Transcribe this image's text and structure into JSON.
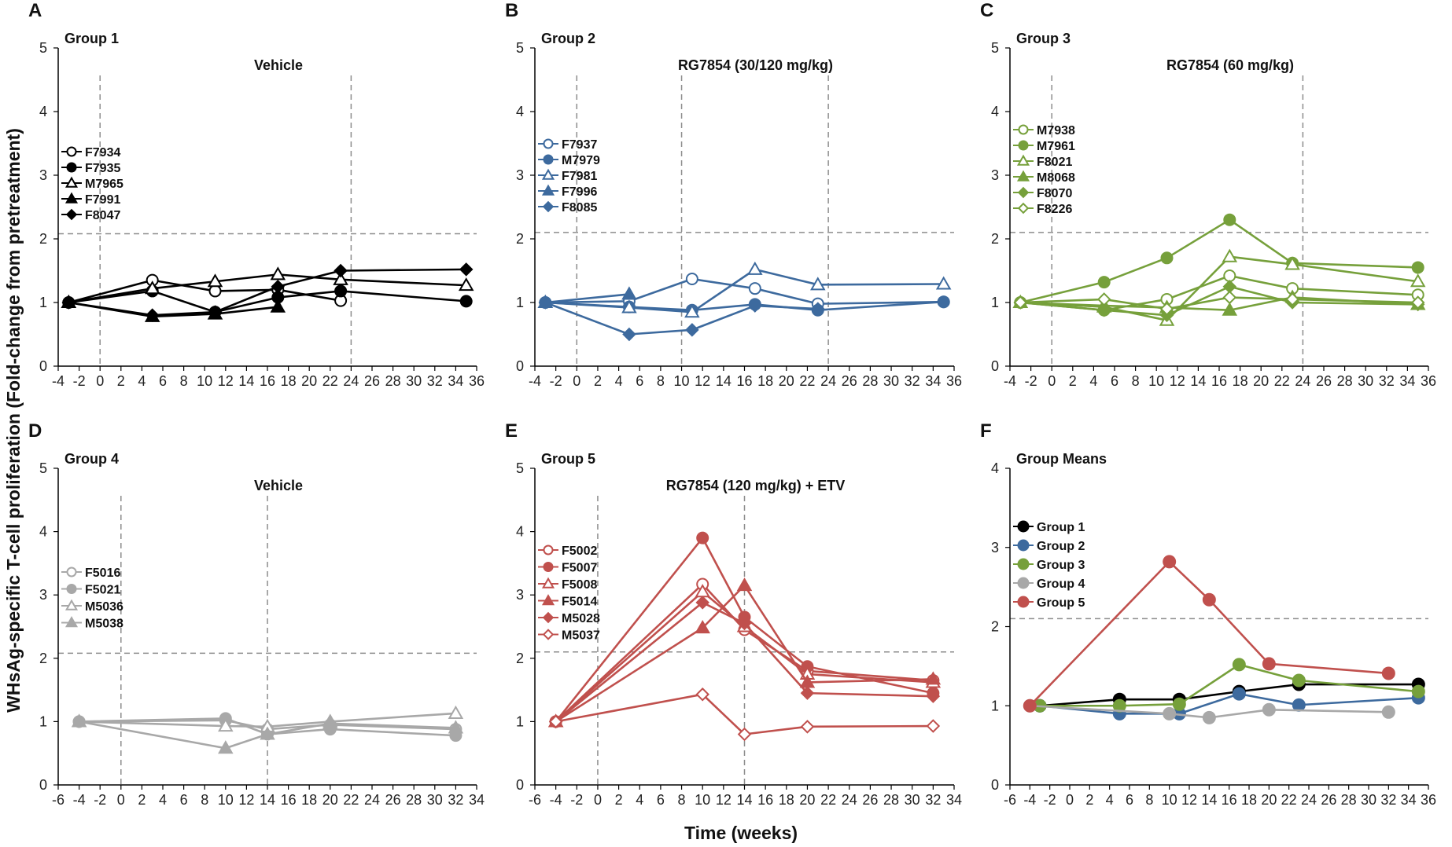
{
  "figure": {
    "xlabel": "Time (weeks)",
    "ylabel": "WHsAg-specific T-cell proliferation (Fold-change from pretreatment)"
  },
  "chart_data": [
    {
      "type": "line",
      "panel": "A",
      "title": "Group 1",
      "subtitle": "Vehicle",
      "xlim": [
        -4,
        36
      ],
      "xticks": [
        -4,
        -2,
        0,
        2,
        4,
        6,
        8,
        10,
        12,
        14,
        16,
        18,
        20,
        22,
        24,
        26,
        28,
        30,
        32,
        34,
        36
      ],
      "ylim": [
        0,
        5
      ],
      "yticks": [
        0,
        1,
        2,
        3,
        4,
        5
      ],
      "vlines": [
        0,
        24
      ],
      "hline": 2.08,
      "legend_pos": "left",
      "series": [
        {
          "name": "F7934",
          "marker": "circle",
          "filled": false,
          "color": "#000000",
          "x": [
            -3,
            5,
            11,
            17,
            23
          ],
          "y": [
            1.0,
            1.35,
            1.18,
            1.2,
            1.03
          ]
        },
        {
          "name": "F7935",
          "marker": "circle",
          "filled": true,
          "color": "#000000",
          "x": [
            -3,
            5,
            11,
            17,
            23,
            35
          ],
          "y": [
            1.0,
            1.18,
            0.85,
            1.08,
            1.18,
            1.02
          ]
        },
        {
          "name": "M7965",
          "marker": "triangle",
          "filled": false,
          "color": "#000000",
          "x": [
            -3,
            5,
            11,
            17,
            23,
            35
          ],
          "y": [
            1.0,
            1.22,
            1.33,
            1.44,
            1.36,
            1.27
          ]
        },
        {
          "name": "F7991",
          "marker": "triangle",
          "filled": true,
          "color": "#000000",
          "x": [
            -3,
            5,
            11,
            17
          ],
          "y": [
            1.0,
            0.78,
            0.82,
            0.93
          ]
        },
        {
          "name": "F8047",
          "marker": "diamond",
          "filled": true,
          "color": "#000000",
          "x": [
            -3,
            5,
            11,
            17,
            23,
            35
          ],
          "y": [
            1.0,
            0.8,
            0.85,
            1.25,
            1.5,
            1.52
          ]
        }
      ]
    },
    {
      "type": "line",
      "panel": "B",
      "title": "Group 2",
      "subtitle": "RG7854 (30/120 mg/kg)",
      "xlim": [
        -4,
        36
      ],
      "xticks": [
        -4,
        -2,
        0,
        2,
        4,
        6,
        8,
        10,
        12,
        14,
        16,
        18,
        20,
        22,
        24,
        26,
        28,
        30,
        32,
        34,
        36
      ],
      "ylim": [
        0,
        5
      ],
      "yticks": [
        0,
        1,
        2,
        3,
        4,
        5
      ],
      "vlines": [
        0,
        10,
        24
      ],
      "hline": 2.1,
      "legend_pos": "left",
      "series": [
        {
          "name": "F7937",
          "marker": "circle",
          "filled": false,
          "color": "#3D6A9E",
          "x": [
            -3,
            5,
            11,
            17,
            23,
            35
          ],
          "y": [
            1.0,
            1.02,
            1.37,
            1.22,
            0.98,
            1.01
          ]
        },
        {
          "name": "M7979",
          "marker": "circle",
          "filled": true,
          "color": "#3D6A9E",
          "x": [
            -3,
            5,
            11,
            17,
            23,
            35
          ],
          "y": [
            1.0,
            0.93,
            0.88,
            0.97,
            0.88,
            1.01
          ]
        },
        {
          "name": "F7981",
          "marker": "triangle",
          "filled": false,
          "color": "#3D6A9E",
          "x": [
            -3,
            5,
            11,
            17,
            23,
            35
          ],
          "y": [
            1.0,
            0.92,
            0.85,
            1.52,
            1.28,
            1.29
          ]
        },
        {
          "name": "F7996",
          "marker": "triangle",
          "filled": true,
          "color": "#3D6A9E",
          "x": [
            -3,
            5
          ],
          "y": [
            1.0,
            1.13
          ]
        },
        {
          "name": "F8085",
          "marker": "diamond",
          "filled": true,
          "color": "#3D6A9E",
          "x": [
            -3,
            5,
            11,
            17,
            23
          ],
          "y": [
            1.0,
            0.5,
            0.57,
            0.95,
            0.9
          ]
        }
      ]
    },
    {
      "type": "line",
      "panel": "C",
      "title": "Group 3",
      "subtitle": "RG7854 (60 mg/kg)",
      "xlim": [
        -4,
        36
      ],
      "xticks": [
        -4,
        -2,
        0,
        2,
        4,
        6,
        8,
        10,
        12,
        14,
        16,
        18,
        20,
        22,
        24,
        26,
        28,
        30,
        32,
        34,
        36
      ],
      "ylim": [
        0,
        5
      ],
      "yticks": [
        0,
        1,
        2,
        3,
        4,
        5
      ],
      "vlines": [
        0,
        24
      ],
      "hline": 2.1,
      "legend_pos": "left",
      "series": [
        {
          "name": "M7938",
          "marker": "circle",
          "filled": false,
          "color": "#76A03B",
          "x": [
            -3,
            5,
            11,
            17,
            23,
            35
          ],
          "y": [
            1.0,
            0.88,
            1.05,
            1.42,
            1.22,
            1.12
          ]
        },
        {
          "name": "M7961",
          "marker": "circle",
          "filled": true,
          "color": "#76A03B",
          "x": [
            -3,
            5,
            11,
            17,
            23,
            35
          ],
          "y": [
            1.0,
            1.32,
            1.7,
            2.3,
            1.62,
            1.55
          ]
        },
        {
          "name": "F8021",
          "marker": "triangle",
          "filled": false,
          "color": "#76A03B",
          "x": [
            -3,
            5,
            11,
            17,
            23,
            35
          ],
          "y": [
            1.0,
            0.93,
            0.72,
            1.72,
            1.6,
            1.33
          ]
        },
        {
          "name": "M8068",
          "marker": "triangle",
          "filled": true,
          "color": "#76A03B",
          "x": [
            -3,
            5,
            11,
            17,
            23,
            35
          ],
          "y": [
            1.0,
            0.95,
            0.92,
            0.88,
            1.08,
            0.97
          ]
        },
        {
          "name": "F8070",
          "marker": "diamond",
          "filled": true,
          "color": "#76A03B",
          "x": [
            -3,
            5,
            11,
            17,
            23,
            35
          ],
          "y": [
            1.0,
            0.88,
            0.8,
            1.25,
            1.0,
            0.97
          ]
        },
        {
          "name": "F8226",
          "marker": "diamond",
          "filled": false,
          "color": "#76A03B",
          "x": [
            -3,
            5,
            11,
            17,
            23,
            35
          ],
          "y": [
            1.0,
            1.05,
            0.9,
            1.08,
            1.05,
            1.0
          ]
        }
      ]
    },
    {
      "type": "line",
      "panel": "D",
      "title": "Group 4",
      "subtitle": "Vehicle",
      "xlim": [
        -6,
        34
      ],
      "xticks": [
        -6,
        -4,
        -2,
        0,
        2,
        4,
        6,
        8,
        10,
        12,
        14,
        16,
        18,
        20,
        22,
        24,
        26,
        28,
        30,
        32,
        34
      ],
      "ylim": [
        0,
        5
      ],
      "yticks": [
        0,
        1,
        2,
        3,
        4,
        5
      ],
      "vlines": [
        0,
        14
      ],
      "hline": 2.08,
      "legend_pos": "left",
      "series": [
        {
          "name": "F5016",
          "marker": "circle",
          "filled": false,
          "color": "#A8A8A8",
          "x": [
            -4,
            10,
            14,
            20,
            32
          ],
          "y": [
            1.0,
            1.02,
            0.88,
            0.95,
            0.88
          ]
        },
        {
          "name": "F5021",
          "marker": "circle",
          "filled": true,
          "color": "#A8A8A8",
          "x": [
            -4,
            10,
            14,
            20,
            32
          ],
          "y": [
            1.0,
            1.05,
            0.8,
            0.88,
            0.78
          ]
        },
        {
          "name": "M5036",
          "marker": "triangle",
          "filled": false,
          "color": "#A8A8A8",
          "x": [
            -4,
            10,
            14,
            20,
            32
          ],
          "y": [
            1.0,
            0.93,
            0.92,
            1.0,
            1.13
          ]
        },
        {
          "name": "M5038",
          "marker": "triangle",
          "filled": true,
          "color": "#A8A8A8",
          "x": [
            -4,
            10,
            14,
            20,
            32
          ],
          "y": [
            1.0,
            0.58,
            0.8,
            0.97,
            0.9
          ]
        }
      ]
    },
    {
      "type": "line",
      "panel": "E",
      "title": "Group 5",
      "subtitle": "RG7854 (120 mg/kg) + ETV",
      "xlim": [
        -6,
        34
      ],
      "xticks": [
        -6,
        -4,
        -2,
        0,
        2,
        4,
        6,
        8,
        10,
        12,
        14,
        16,
        18,
        20,
        22,
        24,
        26,
        28,
        30,
        32,
        34
      ],
      "ylim": [
        0,
        5
      ],
      "yticks": [
        0,
        1,
        2,
        3,
        4,
        5
      ],
      "vlines": [
        0,
        14
      ],
      "hline": 2.1,
      "legend_pos": "left",
      "series": [
        {
          "name": "F5002",
          "marker": "circle",
          "filled": false,
          "color": "#C0504D",
          "x": [
            -4,
            10,
            14,
            20,
            32
          ],
          "y": [
            1.0,
            3.17,
            2.45,
            1.8,
            1.65
          ]
        },
        {
          "name": "F5007",
          "marker": "circle",
          "filled": true,
          "color": "#C0504D",
          "x": [
            -4,
            10,
            14,
            20,
            32
          ],
          "y": [
            1.0,
            3.9,
            2.65,
            1.87,
            1.45
          ]
        },
        {
          "name": "F5008",
          "marker": "triangle",
          "filled": false,
          "color": "#C0504D",
          "x": [
            -4,
            10,
            14,
            20,
            32
          ],
          "y": [
            1.0,
            3.05,
            2.5,
            1.75,
            1.62
          ]
        },
        {
          "name": "F5014",
          "marker": "triangle",
          "filled": true,
          "color": "#C0504D",
          "x": [
            -4,
            10,
            14,
            20,
            32
          ],
          "y": [
            1.0,
            2.48,
            3.15,
            1.62,
            1.67
          ]
        },
        {
          "name": "M5028",
          "marker": "diamond",
          "filled": true,
          "color": "#C0504D",
          "x": [
            -4,
            10,
            14,
            20,
            32
          ],
          "y": [
            1.0,
            2.88,
            2.55,
            1.45,
            1.4
          ]
        },
        {
          "name": "M5037",
          "marker": "diamond",
          "filled": false,
          "color": "#C0504D",
          "x": [
            -4,
            10,
            14,
            20,
            32
          ],
          "y": [
            1.0,
            1.43,
            0.8,
            0.92,
            0.93
          ]
        }
      ]
    },
    {
      "type": "line",
      "panel": "F",
      "title": "Group Means",
      "subtitle": "",
      "xlim": [
        -6,
        36
      ],
      "xticks": [
        -6,
        -4,
        -2,
        0,
        2,
        4,
        6,
        8,
        10,
        12,
        14,
        16,
        18,
        20,
        22,
        24,
        26,
        28,
        30,
        32,
        34,
        36
      ],
      "ylim": [
        0,
        4
      ],
      "yticks": [
        0,
        1,
        2,
        3,
        4
      ],
      "vlines": [],
      "hline": 2.1,
      "legend_pos": "left",
      "series": [
        {
          "name": "Group 1",
          "marker": "circle",
          "filled": true,
          "color": "#000000",
          "x": [
            -3,
            5,
            11,
            17,
            23,
            35
          ],
          "y": [
            1.0,
            1.08,
            1.08,
            1.18,
            1.27,
            1.27
          ]
        },
        {
          "name": "Group 2",
          "marker": "circle",
          "filled": true,
          "color": "#3D6A9E",
          "x": [
            -3,
            5,
            11,
            17,
            23,
            35
          ],
          "y": [
            1.0,
            0.9,
            0.9,
            1.15,
            1.01,
            1.1
          ]
        },
        {
          "name": "Group 3",
          "marker": "circle",
          "filled": true,
          "color": "#76A03B",
          "x": [
            -3,
            5,
            11,
            17,
            23,
            35
          ],
          "y": [
            1.0,
            1.0,
            1.02,
            1.52,
            1.32,
            1.18
          ]
        },
        {
          "name": "Group 4",
          "marker": "circle",
          "filled": true,
          "color": "#A8A8A8",
          "x": [
            -4,
            10,
            14,
            20,
            32
          ],
          "y": [
            1.0,
            0.9,
            0.85,
            0.95,
            0.92
          ]
        },
        {
          "name": "Group 5",
          "marker": "circle",
          "filled": true,
          "color": "#C0504D",
          "x": [
            -4,
            10,
            14,
            20,
            32
          ],
          "y": [
            1.0,
            2.82,
            2.34,
            1.53,
            1.41
          ]
        }
      ]
    }
  ]
}
